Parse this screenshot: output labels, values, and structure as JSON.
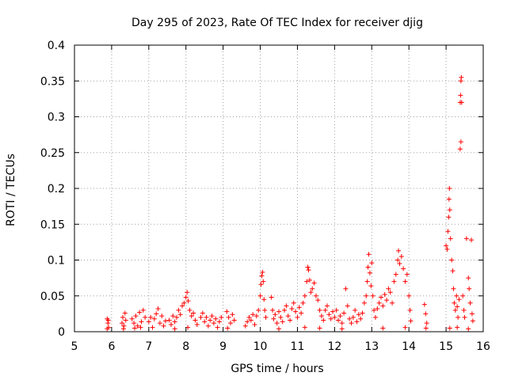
{
  "chart_data": {
    "type": "scatter",
    "title": "Day 295 of 2023, Rate Of TEC Index for receiver djig",
    "xlabel": "GPS time / hours",
    "ylabel": "ROTI / TECUs",
    "xlim": [
      5,
      16
    ],
    "ylim": [
      0,
      0.4
    ],
    "xticks": [
      5,
      6,
      7,
      8,
      9,
      10,
      11,
      12,
      13,
      14,
      15,
      16
    ],
    "xtick_labels": [
      "5",
      "6",
      "7",
      "8",
      "9",
      "10",
      "11",
      "12",
      "13",
      "14",
      "15",
      "16"
    ],
    "yticks": [
      0,
      0.05,
      0.1,
      0.15,
      0.2,
      0.25,
      0.3,
      0.35,
      0.4
    ],
    "ytick_labels": [
      "0",
      "0.05",
      "0.1",
      "0.15",
      "0.2",
      "0.25",
      "0.3",
      "0.35",
      "0.4"
    ],
    "grid": true,
    "marker": "+",
    "color": "#ff0000",
    "points": [
      [
        5.88,
        0.018
      ],
      [
        5.9,
        0.012
      ],
      [
        5.92,
        0.006
      ],
      [
        5.88,
        0.004
      ],
      [
        5.91,
        0.016
      ],
      [
        6.28,
        0.012
      ],
      [
        6.3,
        0.02
      ],
      [
        6.33,
        0.008
      ],
      [
        6.36,
        0.026
      ],
      [
        6.38,
        0.016
      ],
      [
        6.32,
        0.004
      ],
      [
        6.55,
        0.018
      ],
      [
        6.6,
        0.012
      ],
      [
        6.65,
        0.022
      ],
      [
        6.7,
        0.008
      ],
      [
        6.75,
        0.027
      ],
      [
        6.8,
        0.014
      ],
      [
        6.85,
        0.03
      ],
      [
        6.9,
        0.02
      ],
      [
        6.62,
        0.005
      ],
      [
        6.78,
        0.006
      ],
      [
        7.0,
        0.014
      ],
      [
        7.05,
        0.02
      ],
      [
        7.1,
        0.006
      ],
      [
        7.15,
        0.018
      ],
      [
        7.2,
        0.025
      ],
      [
        7.25,
        0.032
      ],
      [
        7.3,
        0.012
      ],
      [
        7.35,
        0.022
      ],
      [
        7.4,
        0.008
      ],
      [
        7.45,
        0.015
      ],
      [
        7.55,
        0.016
      ],
      [
        7.6,
        0.01
      ],
      [
        7.65,
        0.022
      ],
      [
        7.7,
        0.014
      ],
      [
        7.75,
        0.02
      ],
      [
        7.8,
        0.03
      ],
      [
        7.85,
        0.024
      ],
      [
        7.9,
        0.036
      ],
      [
        7.95,
        0.04
      ],
      [
        8.0,
        0.048
      ],
      [
        8.03,
        0.055
      ],
      [
        8.06,
        0.043
      ],
      [
        8.1,
        0.03
      ],
      [
        8.15,
        0.022
      ],
      [
        8.2,
        0.026
      ],
      [
        8.25,
        0.016
      ],
      [
        8.3,
        0.01
      ],
      [
        7.7,
        0.004
      ],
      [
        8.05,
        0.006
      ],
      [
        8.4,
        0.02
      ],
      [
        8.45,
        0.026
      ],
      [
        8.5,
        0.014
      ],
      [
        8.55,
        0.02
      ],
      [
        8.6,
        0.008
      ],
      [
        8.65,
        0.016
      ],
      [
        8.7,
        0.022
      ],
      [
        8.75,
        0.012
      ],
      [
        8.8,
        0.018
      ],
      [
        8.85,
        0.006
      ],
      [
        8.9,
        0.014
      ],
      [
        8.95,
        0.02
      ],
      [
        9.1,
        0.028
      ],
      [
        9.15,
        0.02
      ],
      [
        9.2,
        0.012
      ],
      [
        9.25,
        0.024
      ],
      [
        9.3,
        0.016
      ],
      [
        9.12,
        0.005
      ],
      [
        9.6,
        0.008
      ],
      [
        9.65,
        0.014
      ],
      [
        9.7,
        0.02
      ],
      [
        9.75,
        0.016
      ],
      [
        9.8,
        0.024
      ],
      [
        9.85,
        0.01
      ],
      [
        9.9,
        0.022
      ],
      [
        9.95,
        0.03
      ],
      [
        10.0,
        0.05
      ],
      [
        10.02,
        0.066
      ],
      [
        10.04,
        0.078
      ],
      [
        10.06,
        0.083
      ],
      [
        10.08,
        0.07
      ],
      [
        10.1,
        0.045
      ],
      [
        10.12,
        0.03
      ],
      [
        10.15,
        0.02
      ],
      [
        10.3,
        0.048
      ],
      [
        10.33,
        0.03
      ],
      [
        10.36,
        0.018
      ],
      [
        10.4,
        0.024
      ],
      [
        10.45,
        0.012
      ],
      [
        10.5,
        0.028
      ],
      [
        10.55,
        0.02
      ],
      [
        10.6,
        0.014
      ],
      [
        10.65,
        0.03
      ],
      [
        10.7,
        0.036
      ],
      [
        10.75,
        0.022
      ],
      [
        10.8,
        0.016
      ],
      [
        10.85,
        0.032
      ],
      [
        10.9,
        0.04
      ],
      [
        10.95,
        0.028
      ],
      [
        11.0,
        0.02
      ],
      [
        11.05,
        0.034
      ],
      [
        11.1,
        0.026
      ],
      [
        11.15,
        0.04
      ],
      [
        11.2,
        0.05
      ],
      [
        11.25,
        0.07
      ],
      [
        11.28,
        0.09
      ],
      [
        11.3,
        0.086
      ],
      [
        11.33,
        0.072
      ],
      [
        11.36,
        0.055
      ],
      [
        11.4,
        0.06
      ],
      [
        11.45,
        0.068
      ],
      [
        11.5,
        0.05
      ],
      [
        11.55,
        0.044
      ],
      [
        11.6,
        0.03
      ],
      [
        11.65,
        0.022
      ],
      [
        11.7,
        0.016
      ],
      [
        11.75,
        0.03
      ],
      [
        11.8,
        0.036
      ],
      [
        11.85,
        0.024
      ],
      [
        11.9,
        0.018
      ],
      [
        11.95,
        0.028
      ],
      [
        10.5,
        0.004
      ],
      [
        11.2,
        0.006
      ],
      [
        11.6,
        0.005
      ],
      [
        12.0,
        0.02
      ],
      [
        12.05,
        0.03
      ],
      [
        12.1,
        0.016
      ],
      [
        12.15,
        0.022
      ],
      [
        12.2,
        0.012
      ],
      [
        12.25,
        0.026
      ],
      [
        12.3,
        0.06
      ],
      [
        12.35,
        0.036
      ],
      [
        12.4,
        0.018
      ],
      [
        12.45,
        0.012
      ],
      [
        12.5,
        0.02
      ],
      [
        12.55,
        0.03
      ],
      [
        12.6,
        0.014
      ],
      [
        12.65,
        0.024
      ],
      [
        12.7,
        0.018
      ],
      [
        12.75,
        0.026
      ],
      [
        12.8,
        0.04
      ],
      [
        12.85,
        0.05
      ],
      [
        12.88,
        0.07
      ],
      [
        12.9,
        0.09
      ],
      [
        12.92,
        0.108
      ],
      [
        12.95,
        0.082
      ],
      [
        12.98,
        0.064
      ],
      [
        13.0,
        0.096
      ],
      [
        13.03,
        0.05
      ],
      [
        13.06,
        0.03
      ],
      [
        13.1,
        0.02
      ],
      [
        13.15,
        0.032
      ],
      [
        13.2,
        0.04
      ],
      [
        13.25,
        0.048
      ],
      [
        13.3,
        0.036
      ],
      [
        13.35,
        0.052
      ],
      [
        13.4,
        0.044
      ],
      [
        13.45,
        0.06
      ],
      [
        13.5,
        0.055
      ],
      [
        13.55,
        0.04
      ],
      [
        13.6,
        0.07
      ],
      [
        13.65,
        0.08
      ],
      [
        13.7,
        0.1
      ],
      [
        13.72,
        0.113
      ],
      [
        13.75,
        0.095
      ],
      [
        13.8,
        0.105
      ],
      [
        13.85,
        0.088
      ],
      [
        13.9,
        0.07
      ],
      [
        13.95,
        0.08
      ],
      [
        14.0,
        0.05
      ],
      [
        14.03,
        0.03
      ],
      [
        14.05,
        0.015
      ],
      [
        12.2,
        0.004
      ],
      [
        13.3,
        0.005
      ],
      [
        13.9,
        0.006
      ],
      [
        14.42,
        0.038
      ],
      [
        14.45,
        0.025
      ],
      [
        14.48,
        0.012
      ],
      [
        14.46,
        0.005
      ],
      [
        15.0,
        0.12
      ],
      [
        15.03,
        0.115
      ],
      [
        15.05,
        0.14
      ],
      [
        15.07,
        0.16
      ],
      [
        15.08,
        0.185
      ],
      [
        15.09,
        0.2
      ],
      [
        15.1,
        0.17
      ],
      [
        15.12,
        0.13
      ],
      [
        15.15,
        0.1
      ],
      [
        15.18,
        0.085
      ],
      [
        15.2,
        0.06
      ],
      [
        15.22,
        0.04
      ],
      [
        15.25,
        0.03
      ],
      [
        15.28,
        0.05
      ],
      [
        15.3,
        0.035
      ],
      [
        15.32,
        0.02
      ],
      [
        15.35,
        0.045
      ],
      [
        15.38,
        0.32
      ],
      [
        15.39,
        0.33
      ],
      [
        15.4,
        0.35
      ],
      [
        15.41,
        0.355
      ],
      [
        15.4,
        0.265
      ],
      [
        15.38,
        0.255
      ],
      [
        15.42,
        0.32
      ],
      [
        15.45,
        0.05
      ],
      [
        15.48,
        0.03
      ],
      [
        15.5,
        0.02
      ],
      [
        15.55,
        0.13
      ],
      [
        15.6,
        0.075
      ],
      [
        15.62,
        0.06
      ],
      [
        15.65,
        0.04
      ],
      [
        15.68,
        0.128
      ],
      [
        15.7,
        0.025
      ],
      [
        15.72,
        0.015
      ],
      [
        15.1,
        0.005
      ],
      [
        15.3,
        0.006
      ],
      [
        15.6,
        0.004
      ]
    ]
  }
}
